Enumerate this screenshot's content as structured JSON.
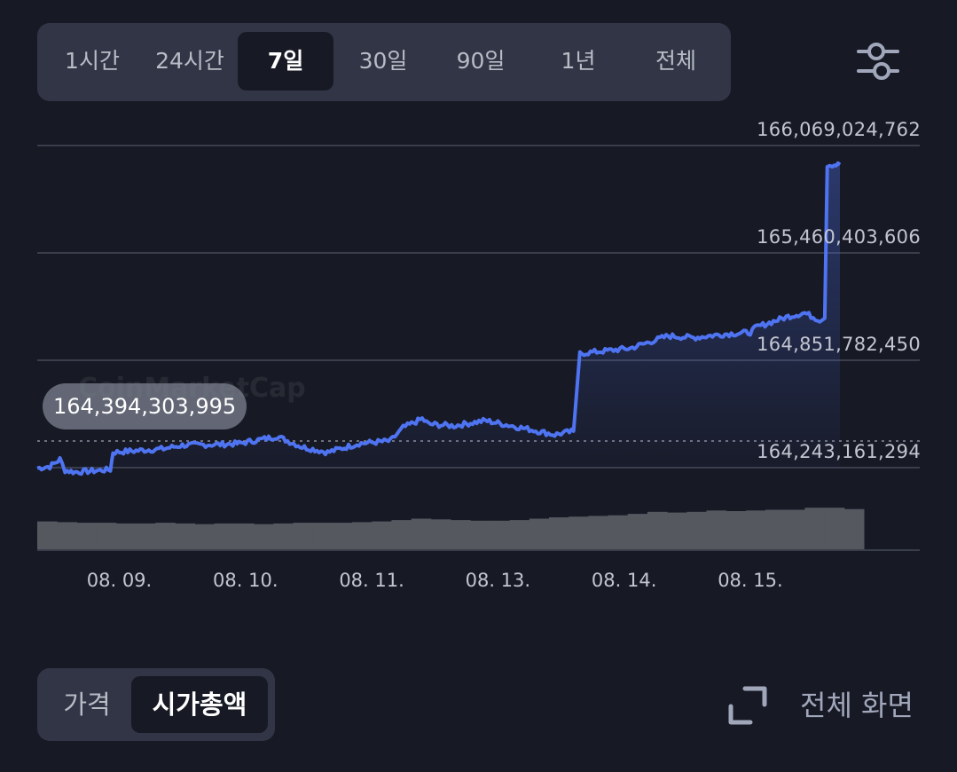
{
  "range_tabs": [
    "1시간",
    "24시간",
    "7일",
    "30일",
    "90일",
    "1년",
    "전체"
  ],
  "range_active_index": 2,
  "filter_icon": "sliders-icon",
  "metric_tabs": [
    "가격",
    "시가총액"
  ],
  "metric_active_index": 1,
  "fullscreen": {
    "icon": "expand-icon",
    "label": "전체 화면"
  },
  "watermark": "CoinMarketCap",
  "colors": {
    "line": "#4f74f2",
    "background": "#171924",
    "volume": "#55585f",
    "panel": "#323546"
  },
  "chart_data": {
    "type": "line",
    "start_value_label": "164,394,303,995",
    "y_tick_labels": [
      "166,069,024,762",
      "165,460,403,606",
      "164,851,782,450",
      "164,243,161,294"
    ],
    "y_ticks": [
      166069024762,
      165460403606,
      164851782450,
      164243161294
    ],
    "ylim": [
      164243161294,
      166069024762
    ],
    "x_tick_labels": [
      "08. 09.",
      "08. 10.",
      "08. 11.",
      "08. 13.",
      "08. 14.",
      "08. 15."
    ],
    "x_domain_days": [
      0,
      6.55
    ],
    "x_ticks_days": [
      0.65,
      1.65,
      2.65,
      3.65,
      4.65,
      5.65
    ],
    "reference_value": 164394303995,
    "series": [
      {
        "x": [
          0,
          0.1,
          0.18,
          0.22,
          0.3,
          0.45,
          0.58,
          0.6,
          0.8,
          1.0,
          1.15,
          1.45,
          1.6,
          1.9,
          2.1,
          2.3,
          2.55,
          2.8,
          2.9,
          3.05,
          3.1,
          3.3,
          3.55,
          3.9,
          4.1,
          4.25,
          4.3,
          4.7,
          5.0,
          5.2,
          5.45,
          5.65,
          5.7,
          5.95,
          6.08,
          6.2,
          6.24,
          6.26,
          6.3,
          6.33,
          6.36
        ],
        "y": [
          164240000000,
          164250000000,
          164290000000,
          164228000000,
          164218000000,
          164225000000,
          164232000000,
          164330000000,
          164340000000,
          164350000000,
          164370000000,
          164375000000,
          164380000000,
          164420000000,
          164360000000,
          164330000000,
          164380000000,
          164395000000,
          164470000000,
          164520000000,
          164490000000,
          164480000000,
          164510000000,
          164460000000,
          164430000000,
          164450000000,
          164890000000,
          164920000000,
          164990000000,
          164980000000,
          165000000000,
          165010000000,
          165040000000,
          165100000000,
          165120000000,
          165080000000,
          165090000000,
          165960000000,
          165960000000,
          165960000000,
          165960000000
        ]
      }
    ],
    "volume": [
      42,
      41,
      40,
      40,
      39,
      39,
      40,
      39,
      38,
      39,
      39,
      38,
      39,
      40,
      40,
      40,
      41,
      42,
      44,
      46,
      45,
      44,
      43,
      43,
      44,
      46,
      48,
      49,
      50,
      51,
      53,
      56,
      55,
      56,
      58,
      57,
      58,
      59,
      59,
      62,
      62,
      60
    ],
    "grid": true
  }
}
